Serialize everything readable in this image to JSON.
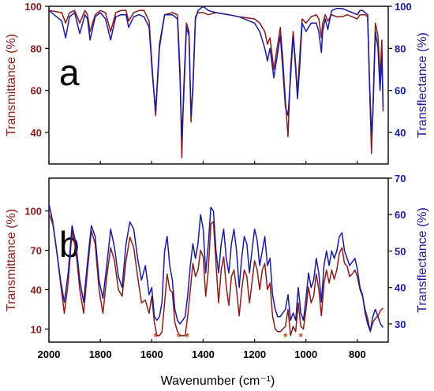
{
  "colors": {
    "transmittance": "#8b1a1a",
    "transflectance": "#1a1a9c",
    "frame": "#000000",
    "asterisk": "#c05030"
  },
  "x_axis": {
    "label": "Wavenumber (cm⁻¹)",
    "ticks": [
      2000,
      1800,
      1600,
      1400,
      1200,
      1000,
      800
    ]
  },
  "chart_data": [
    {
      "type": "line",
      "panel_label": "a",
      "xlim": [
        2000,
        680
      ],
      "ylabel_left": "Transmittance (%)",
      "ylabel_right": "Transflectance (%)",
      "ylim_left": [
        25,
        100
      ],
      "ylim_right": [
        25,
        100
      ],
      "yticks_left": [
        40,
        60,
        80,
        100
      ],
      "yticks_right": [
        40,
        60,
        80,
        100
      ],
      "series": [
        {
          "name": "Transmittance (%)",
          "axis": "left",
          "color": "#8b1a1a",
          "x": [
            2000,
            1950,
            1935,
            1920,
            1900,
            1880,
            1860,
            1850,
            1840,
            1820,
            1800,
            1780,
            1760,
            1740,
            1720,
            1700,
            1690,
            1670,
            1650,
            1630,
            1610,
            1598,
            1585,
            1570,
            1550,
            1520,
            1500,
            1490,
            1483,
            1476,
            1465,
            1455,
            1447,
            1440,
            1430,
            1420,
            1400,
            1380,
            1350,
            1300,
            1260,
            1200,
            1180,
            1160,
            1150,
            1140,
            1125,
            1115,
            1100,
            1090,
            1080,
            1070,
            1060,
            1050,
            1040,
            1033,
            1025,
            1015,
            1000,
            980,
            960,
            950,
            940,
            935,
            925,
            915,
            900,
            880,
            860,
            840,
            820,
            800,
            790,
            780,
            770,
            760,
            752,
            745,
            740,
            730,
            720,
            712,
            705,
            700
          ],
          "y": [
            98,
            97,
            92,
            97,
            98,
            92,
            98,
            96,
            88,
            96,
            98,
            97,
            88,
            97,
            98,
            98,
            93,
            97,
            98,
            98,
            93,
            70,
            48,
            80,
            96,
            97,
            96,
            70,
            28,
            60,
            92,
            88,
            45,
            62,
            95,
            97,
            97,
            96,
            97,
            96,
            95,
            94,
            92,
            88,
            82,
            85,
            70,
            78,
            90,
            75,
            55,
            38,
            70,
            88,
            72,
            58,
            75,
            94,
            92,
            95,
            96,
            94,
            85,
            92,
            96,
            93,
            96,
            95,
            95,
            96,
            95,
            94,
            96,
            96,
            96,
            95,
            60,
            30,
            50,
            92,
            86,
            66,
            84,
            50
          ]
        },
        {
          "name": "Transflectance (%)",
          "axis": "right",
          "color": "#1a1a9c",
          "x": [
            2000,
            1950,
            1935,
            1920,
            1900,
            1880,
            1860,
            1850,
            1840,
            1820,
            1800,
            1780,
            1760,
            1740,
            1720,
            1700,
            1690,
            1670,
            1650,
            1630,
            1610,
            1598,
            1585,
            1570,
            1550,
            1520,
            1500,
            1490,
            1483,
            1476,
            1465,
            1455,
            1447,
            1440,
            1430,
            1420,
            1400,
            1380,
            1350,
            1300,
            1260,
            1200,
            1180,
            1160,
            1150,
            1140,
            1125,
            1115,
            1100,
            1090,
            1080,
            1070,
            1060,
            1050,
            1040,
            1033,
            1025,
            1015,
            1000,
            980,
            960,
            950,
            940,
            935,
            925,
            915,
            900,
            880,
            860,
            840,
            820,
            800,
            790,
            780,
            770,
            760,
            752,
            745,
            740,
            730,
            720,
            712,
            705,
            700
          ],
          "y": [
            98,
            93,
            85,
            95,
            97,
            87,
            96,
            94,
            84,
            95,
            97,
            94,
            84,
            95,
            96,
            96,
            90,
            95,
            96,
            95,
            90,
            68,
            50,
            82,
            96,
            96,
            94,
            66,
            38,
            56,
            90,
            86,
            48,
            60,
            94,
            98,
            100,
            98,
            97,
            96,
            95,
            92,
            88,
            80,
            74,
            80,
            66,
            74,
            86,
            70,
            52,
            48,
            66,
            86,
            70,
            56,
            70,
            92,
            88,
            92,
            92,
            88,
            78,
            88,
            94,
            89,
            98,
            99,
            99,
            98,
            97,
            96,
            98,
            98,
            97,
            96,
            62,
            40,
            48,
            88,
            80,
            60,
            76,
            52
          ]
        }
      ]
    },
    {
      "type": "line",
      "panel_label": "b",
      "xlim": [
        2000,
        680
      ],
      "ylabel_left": "Transmittance (%)",
      "ylabel_right": "Transflectance (%)",
      "ylim_left": [
        0,
        125
      ],
      "ylim_right": [
        25,
        70
      ],
      "yticks_left": [
        10,
        40,
        70,
        100
      ],
      "yticks_right": [
        30,
        40,
        50,
        60,
        70
      ],
      "annotations": [
        {
          "text": "*",
          "x": 1585
        },
        {
          "text": "*",
          "x": 1495
        },
        {
          "text": "*",
          "x": 1462
        },
        {
          "text": "*",
          "x": 1080
        },
        {
          "text": "*",
          "x": 1020
        }
      ],
      "series": [
        {
          "name": "Transmittance (%)",
          "axis": "left",
          "color": "#8b1a1a",
          "x": [
            2000,
            1985,
            1970,
            1955,
            1940,
            1925,
            1910,
            1895,
            1880,
            1865,
            1850,
            1835,
            1820,
            1805,
            1790,
            1775,
            1760,
            1745,
            1730,
            1715,
            1700,
            1685,
            1670,
            1655,
            1640,
            1625,
            1610,
            1600,
            1590,
            1580,
            1570,
            1560,
            1550,
            1540,
            1530,
            1520,
            1510,
            1500,
            1490,
            1480,
            1470,
            1460,
            1450,
            1440,
            1430,
            1420,
            1410,
            1400,
            1390,
            1380,
            1370,
            1360,
            1350,
            1340,
            1330,
            1320,
            1310,
            1300,
            1290,
            1280,
            1270,
            1260,
            1250,
            1240,
            1230,
            1220,
            1210,
            1200,
            1190,
            1180,
            1170,
            1160,
            1150,
            1140,
            1130,
            1120,
            1110,
            1100,
            1090,
            1080,
            1070,
            1060,
            1050,
            1040,
            1030,
            1020,
            1010,
            1000,
            990,
            980,
            970,
            960,
            950,
            940,
            930,
            920,
            910,
            900,
            890,
            880,
            870,
            860,
            850,
            840,
            830,
            820,
            810,
            800,
            790,
            780,
            770,
            760,
            750,
            740,
            730,
            720,
            710,
            700
          ],
          "y": [
            98,
            90,
            70,
            45,
            22,
            45,
            85,
            70,
            40,
            22,
            55,
            85,
            75,
            40,
            22,
            50,
            72,
            62,
            40,
            35,
            62,
            80,
            72,
            50,
            30,
            32,
            22,
            35,
            15,
            5,
            5,
            8,
            30,
            52,
            40,
            38,
            15,
            8,
            5,
            5,
            5,
            20,
            40,
            60,
            50,
            55,
            70,
            65,
            35,
            55,
            90,
            92,
            60,
            30,
            55,
            65,
            42,
            28,
            50,
            55,
            40,
            20,
            40,
            55,
            50,
            30,
            45,
            62,
            55,
            40,
            55,
            60,
            40,
            45,
            20,
            10,
            8,
            8,
            10,
            12,
            25,
            5,
            12,
            8,
            30,
            12,
            10,
            25,
            42,
            30,
            35,
            52,
            40,
            20,
            45,
            55,
            45,
            55,
            48,
            55,
            68,
            72,
            60,
            58,
            50,
            52,
            55,
            50,
            40,
            35,
            25,
            18,
            8,
            15,
            18,
            20,
            24,
            26
          ]
        },
        {
          "name": "Transflectance (%)",
          "axis": "right",
          "color": "#1a1a9c",
          "x": [
            2000,
            1985,
            1970,
            1955,
            1940,
            1925,
            1910,
            1895,
            1880,
            1865,
            1850,
            1835,
            1820,
            1805,
            1790,
            1775,
            1760,
            1745,
            1730,
            1715,
            1700,
            1685,
            1670,
            1655,
            1640,
            1625,
            1610,
            1600,
            1590,
            1580,
            1570,
            1560,
            1550,
            1540,
            1530,
            1520,
            1510,
            1500,
            1490,
            1480,
            1470,
            1460,
            1450,
            1440,
            1430,
            1420,
            1410,
            1400,
            1390,
            1380,
            1370,
            1360,
            1350,
            1340,
            1330,
            1320,
            1310,
            1300,
            1290,
            1280,
            1270,
            1260,
            1250,
            1240,
            1230,
            1220,
            1210,
            1200,
            1190,
            1180,
            1170,
            1160,
            1150,
            1140,
            1130,
            1120,
            1110,
            1100,
            1090,
            1080,
            1070,
            1060,
            1050,
            1040,
            1030,
            1020,
            1010,
            1000,
            990,
            980,
            970,
            960,
            950,
            940,
            930,
            920,
            910,
            900,
            890,
            880,
            870,
            860,
            850,
            840,
            830,
            820,
            810,
            800,
            790,
            780,
            770,
            760,
            750,
            740,
            730,
            720,
            710,
            700
          ],
          "y": [
            63,
            58,
            50,
            42,
            36,
            44,
            57,
            52,
            42,
            36,
            47,
            57,
            54,
            42,
            37,
            46,
            56,
            51,
            43,
            40,
            52,
            58,
            56,
            48,
            42,
            46,
            38,
            40,
            32,
            31,
            32,
            36,
            50,
            54,
            46,
            42,
            34,
            31,
            30,
            31,
            32,
            38,
            46,
            52,
            48,
            52,
            60,
            56,
            44,
            52,
            62,
            61,
            50,
            44,
            52,
            56,
            48,
            44,
            52,
            56,
            50,
            40,
            48,
            54,
            52,
            44,
            50,
            56,
            53,
            46,
            50,
            54,
            46,
            48,
            38,
            34,
            32,
            32,
            33,
            34,
            38,
            31,
            33,
            31,
            40,
            33,
            31,
            37,
            44,
            40,
            42,
            48,
            44,
            36,
            46,
            50,
            46,
            50,
            48,
            50,
            54,
            55,
            50,
            48,
            46,
            47,
            48,
            45,
            40,
            38,
            33,
            30,
            28,
            32,
            34,
            32,
            30,
            29
          ]
        }
      ]
    }
  ]
}
